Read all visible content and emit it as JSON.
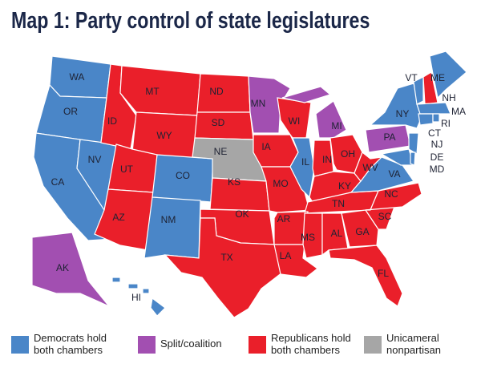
{
  "title": "Map 1: Party control of state legislatures",
  "groups": [
    {
      "label": "Democrats hold\nboth chambers",
      "color": "#4a86c8",
      "states": [
        "WA",
        "OR",
        "CA",
        "NV",
        "CO",
        "NM",
        "IL",
        "NY",
        "VT",
        "ME",
        "MA",
        "RI",
        "CT",
        "NJ",
        "DE",
        "MD",
        "VA",
        "HI"
      ]
    },
    {
      "label": "Split/coalition",
      "color": "#a24fb1",
      "states": [
        "MN",
        "MI",
        "PA",
        "AK"
      ]
    },
    {
      "label": "Republicans hold\nboth chambers",
      "color": "#ea1f2a",
      "states": [
        "MT",
        "ID",
        "WY",
        "UT",
        "AZ",
        "ND",
        "SD",
        "KS",
        "OK",
        "TX",
        "IA",
        "MO",
        "AR",
        "LA",
        "WI",
        "IN",
        "KY",
        "TN",
        "MS",
        "AL",
        "GA",
        "FL",
        "SC",
        "NC",
        "WV",
        "OH",
        "NH"
      ]
    },
    {
      "label": "Unicameral\nnonpartisan",
      "color": "#a6a6a6",
      "states": [
        "NE"
      ]
    }
  ]
}
